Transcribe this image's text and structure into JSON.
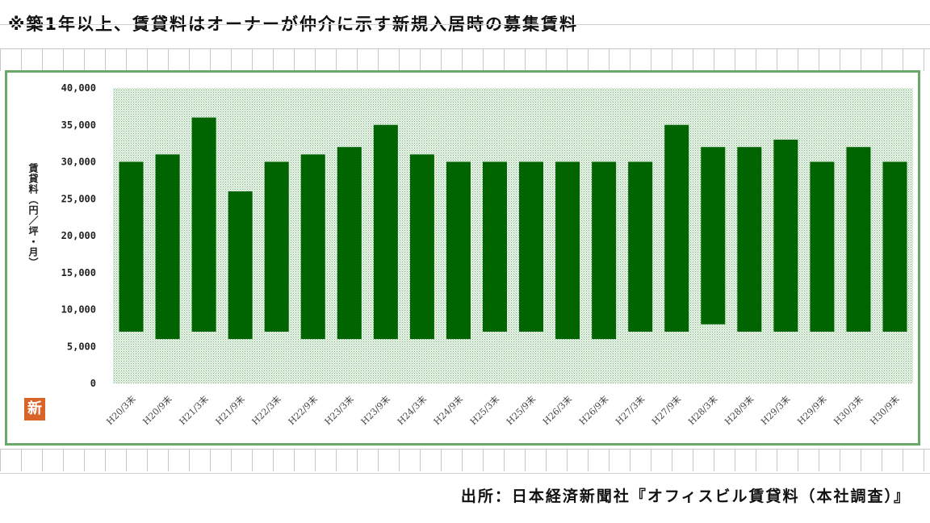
{
  "header": {
    "title": "※築1年以上、賃貸料はオーナーが仲介に示す新規入居時の募集賃料"
  },
  "footer": {
    "source": "出所：日本経済新聞社『オフィスビル賃貸料（本社調査）』"
  },
  "logo": {
    "text": "新",
    "color": "#d9642a"
  },
  "chart_data": {
    "type": "bar",
    "subtype": "floating-range",
    "title": "",
    "xlabel": "",
    "ylabel": "賃貸料（円／坪・月）",
    "ylim": [
      0,
      40000
    ],
    "yticks": [
      0,
      5000,
      10000,
      15000,
      20000,
      25000,
      30000,
      35000,
      40000
    ],
    "ytick_labels": [
      "0",
      "5,000",
      "10,000",
      "15,000",
      "20,000",
      "25,000",
      "30,000",
      "35,000",
      "40,000"
    ],
    "grid": false,
    "legend": "none",
    "colors": {
      "bar": "#006400",
      "plot_bg": "#e9f3e9",
      "plot_dot": "#78ae78",
      "frame": "#6aa86a"
    },
    "categories": [
      "H20/3末",
      "H20/9末",
      "H21/3末",
      "H21/9末",
      "H22/3末",
      "H22/9末",
      "H23/3末",
      "H23/9末",
      "H24/3末",
      "H24/9末",
      "H25/3末",
      "H25/9末",
      "H26/3末",
      "H26/9末",
      "H27/3末",
      "H27/9末",
      "H28/3末",
      "H28/9末",
      "H29/3末",
      "H29/9末",
      "H30/3末",
      "H30/9末"
    ],
    "series": [
      {
        "low": [
          7000,
          6000,
          7000,
          6000,
          7000,
          6000,
          6000,
          6000,
          6000,
          6000,
          7000,
          7000,
          6000,
          6000,
          7000,
          7000,
          8000,
          7000,
          7000,
          7000,
          7000,
          7000
        ],
        "high": [
          30000,
          31000,
          36000,
          26000,
          30000,
          31000,
          32000,
          35000,
          31000,
          30000,
          30000,
          30000,
          30000,
          30000,
          30000,
          35000,
          32000,
          32000,
          33000,
          30000,
          32000,
          30000
        ]
      }
    ]
  }
}
